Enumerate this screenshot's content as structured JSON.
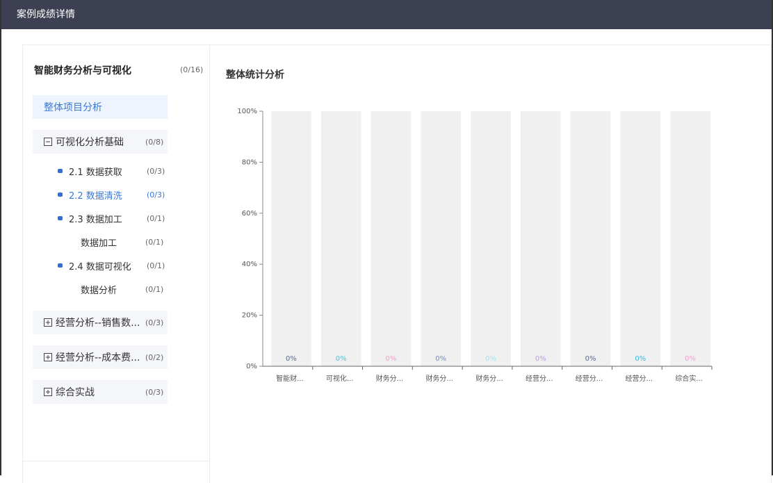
{
  "header": {
    "title": "案例成绩详情"
  },
  "sidebar": {
    "title": "智能财务分析与可视化",
    "count": "(0/16)",
    "items": [
      {
        "label": "整体项目分析",
        "kind": "link",
        "active": true
      },
      {
        "label": "可视化分析基础",
        "count": "(0/8)",
        "kind": "group",
        "expanded": true
      },
      {
        "label": "2.1 数据获取",
        "count": "(0/3)",
        "kind": "chapter"
      },
      {
        "label": "2.2 数据清洗",
        "count": "(0/3)",
        "kind": "chapter",
        "selected": true
      },
      {
        "label": "2.3 数据加工",
        "count": "(0/1)",
        "kind": "chapter"
      },
      {
        "label": "数据加工",
        "count": "(0/1)",
        "kind": "leaf"
      },
      {
        "label": "2.4 数据可视化",
        "count": "(0/1)",
        "kind": "chapter"
      },
      {
        "label": "数据分析",
        "count": "(0/1)",
        "kind": "leaf"
      },
      {
        "label": "经营分析--销售数...",
        "count": "(0/3)",
        "kind": "group",
        "expanded": false
      },
      {
        "label": "经营分析--成本费...",
        "count": "(0/2)",
        "kind": "group",
        "expanded": false
      },
      {
        "label": "综合实战",
        "count": "(0/3)",
        "kind": "group",
        "expanded": false
      }
    ]
  },
  "panel": {
    "title": "整体统计分析"
  },
  "chart_data": {
    "type": "bar",
    "categories": [
      "智能财...",
      "可视化...",
      "财务分...",
      "财务分...",
      "财务分...",
      "经营分...",
      "经营分...",
      "经营分...",
      "综合实..."
    ],
    "values": [
      0,
      0,
      0,
      0,
      0,
      0,
      0,
      0,
      0
    ],
    "value_labels": [
      "0%",
      "0%",
      "0%",
      "0%",
      "0%",
      "0%",
      "0%",
      "0%",
      "0%"
    ],
    "label_colors": [
      "#5b6b8c",
      "#4dc3d8",
      "#f0a0c8",
      "#6f8fb8",
      "#a0e6f0",
      "#b4a0d8",
      "#5b6b8c",
      "#3fb8d8",
      "#f0a0d0"
    ],
    "color": "#5b8ff9",
    "background_color": "#f0f0f0",
    "ylim": [
      0,
      100
    ],
    "yticks": [
      {
        "value": 0,
        "label": "0%"
      },
      {
        "value": 20,
        "label": "20%"
      },
      {
        "value": 40,
        "label": "40%"
      },
      {
        "value": 60,
        "label": "60%"
      },
      {
        "value": 80,
        "label": "80%"
      },
      {
        "value": 100,
        "label": "100%"
      }
    ]
  }
}
